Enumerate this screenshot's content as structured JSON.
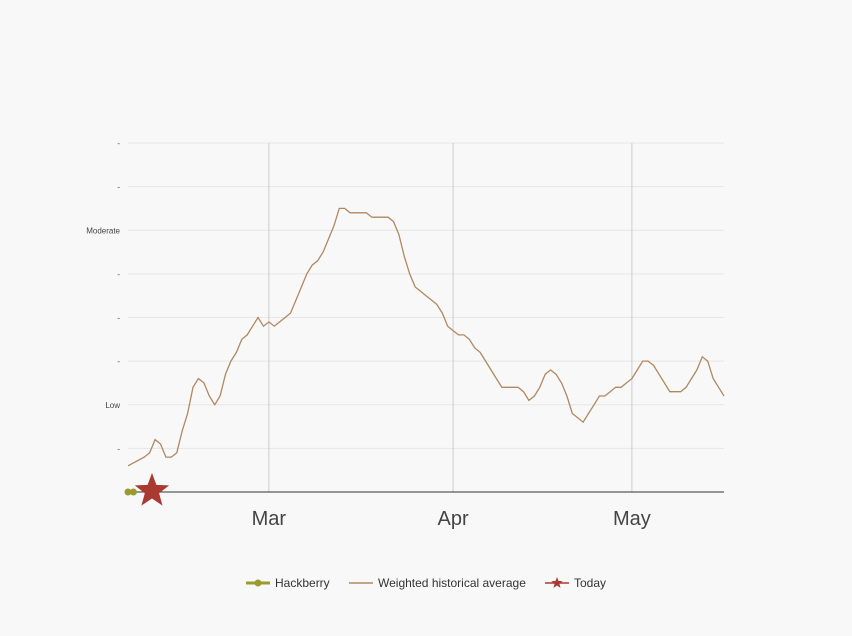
{
  "chart_data": {
    "type": "line",
    "x_ticks": [
      "Mar",
      "Apr",
      "May"
    ],
    "y_ticks": [
      "-",
      "Low",
      "-",
      "-",
      "-",
      "Moderate",
      "-",
      "-"
    ],
    "y_tick_values": [
      1,
      2,
      3,
      4,
      5,
      6,
      7,
      8
    ],
    "xlim": [
      0,
      110
    ],
    "ylim": [
      0,
      8
    ],
    "x_tick_values": [
      26,
      60,
      93
    ],
    "grid": true,
    "legend_placement": "bottom",
    "series": [
      {
        "name": "Hackberry",
        "color": "#9a9a2e",
        "x": [
          0,
          1
        ],
        "y": [
          0,
          0
        ]
      },
      {
        "name": "Weighted historical average",
        "color": "#b08860",
        "x": [
          0,
          3,
          4,
          5,
          6,
          7,
          8,
          9,
          10,
          11,
          12,
          13,
          14,
          15,
          16,
          17,
          18,
          19,
          20,
          21,
          22,
          23,
          24,
          25,
          26,
          27,
          28,
          29,
          30,
          31,
          32,
          33,
          34,
          35,
          36,
          37,
          38,
          39,
          40,
          41,
          42,
          43,
          44,
          45,
          46,
          47,
          48,
          49,
          50,
          51,
          52,
          53,
          54,
          55,
          56,
          57,
          58,
          59,
          60,
          61,
          62,
          63,
          64,
          65,
          66,
          67,
          68,
          69,
          70,
          71,
          72,
          73,
          74,
          75,
          76,
          77,
          78,
          79,
          80,
          81,
          82,
          83,
          84,
          85,
          86,
          87,
          88,
          89,
          90,
          91,
          92,
          93,
          94,
          95,
          96,
          97,
          98,
          99,
          100,
          101,
          102,
          103,
          104,
          105,
          106,
          107,
          108,
          109,
          110
        ],
        "y": [
          0.6,
          0.8,
          0.9,
          1.2,
          1.1,
          0.8,
          0.8,
          0.9,
          1.4,
          1.8,
          2.4,
          2.6,
          2.5,
          2.2,
          2.0,
          2.2,
          2.7,
          3.0,
          3.2,
          3.5,
          3.6,
          3.8,
          4.0,
          3.8,
          3.9,
          3.8,
          3.9,
          4.0,
          4.1,
          4.4,
          4.7,
          5.0,
          5.2,
          5.3,
          5.5,
          5.8,
          6.1,
          6.5,
          6.5,
          6.4,
          6.4,
          6.4,
          6.4,
          6.3,
          6.3,
          6.3,
          6.3,
          6.2,
          5.9,
          5.4,
          5.0,
          4.7,
          4.6,
          4.5,
          4.4,
          4.3,
          4.1,
          3.8,
          3.7,
          3.6,
          3.6,
          3.5,
          3.3,
          3.2,
          3.0,
          2.8,
          2.6,
          2.4,
          2.4,
          2.4,
          2.4,
          2.3,
          2.1,
          2.2,
          2.4,
          2.7,
          2.8,
          2.7,
          2.5,
          2.2,
          1.8,
          1.7,
          1.6,
          1.8,
          2.0,
          2.2,
          2.2,
          2.3,
          2.4,
          2.4,
          2.5,
          2.6,
          2.8,
          3.0,
          3.0,
          2.9,
          2.7,
          2.5,
          2.3,
          2.3,
          2.3,
          2.4,
          2.6,
          2.8,
          3.1,
          3.0,
          2.6,
          2.4,
          2.2
        ]
      },
      {
        "name": "Today",
        "color": "#a83a32",
        "x": [
          3.5
        ],
        "y": [
          0
        ]
      }
    ]
  }
}
